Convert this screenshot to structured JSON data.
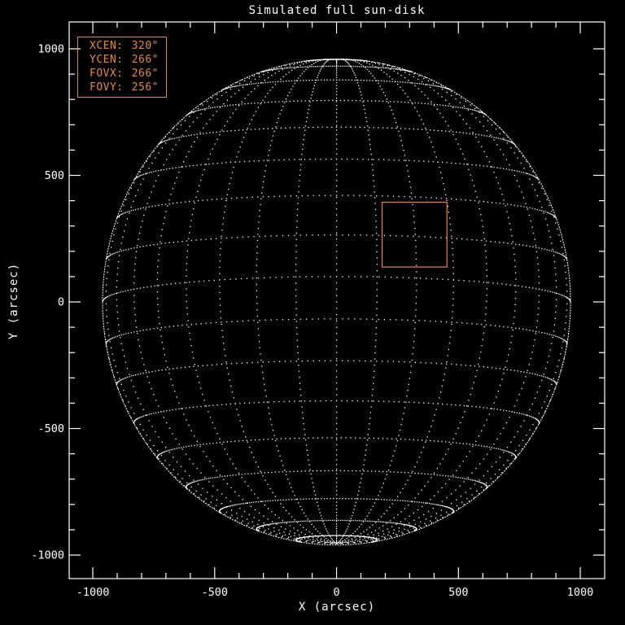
{
  "figure": {
    "background_color": "#000000",
    "foreground_color": "#ffffff",
    "accent_color": "#e6873c"
  },
  "chart_data": {
    "type": "scatter",
    "title": "Simulated full sun-disk",
    "xlabel": "X (arcsec)",
    "ylabel": "Y (arcsec)",
    "xlim": [
      -1097,
      1100
    ],
    "ylim": [
      -1093,
      1106
    ],
    "x_major_ticks": [
      -1000,
      -500,
      0,
      500,
      1000
    ],
    "x_tick_labels": [
      "-1000",
      "-500",
      "0",
      "500",
      "1000"
    ],
    "y_major_ticks": [
      -1000,
      -500,
      0,
      500,
      1000
    ],
    "y_tick_labels": [
      "-1000",
      "-500",
      "0",
      "500",
      "1000"
    ],
    "minor_tick_interval_arcsec": 100,
    "grid_on": true,
    "legend_position": "top-left",
    "sun_grid": {
      "style": "dotted",
      "color": "#ffffff",
      "sun_radius_arcsec": 960,
      "b0_tilt_deg": -6,
      "latitude_step_deg": 10,
      "longitude_step_deg": 10,
      "latitude_circle_range_deg": [
        -80,
        80
      ],
      "meridian_range_deg": [
        -90,
        90
      ],
      "dot_sample_step_deg": 1.5
    },
    "fov_box": {
      "xcen_arcsec": 320,
      "ycen_arcsec": 266,
      "fovx_arcsec": 266,
      "fovy_arcsec": 256,
      "color": "#e6873c"
    },
    "legend": {
      "rows": [
        {
          "label": "XCEN:",
          "value": "320\""
        },
        {
          "label": "YCEN:",
          "value": "266\""
        },
        {
          "label": "FOVX:",
          "value": "266\""
        },
        {
          "label": "FOVY:",
          "value": "256\""
        }
      ]
    }
  }
}
